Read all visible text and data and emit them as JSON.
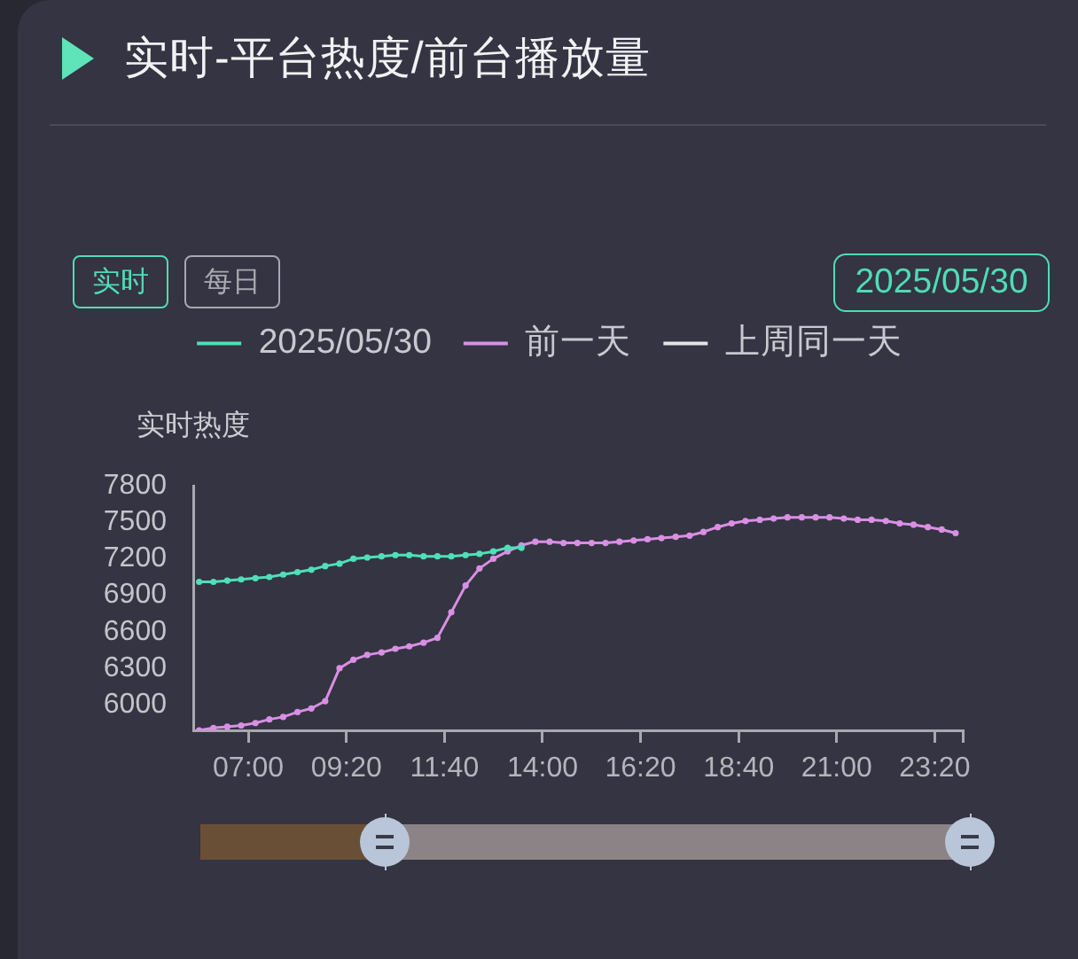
{
  "chart_data": {
    "type": "line",
    "title": "实时-平台热度/前台播放量",
    "ylabel": "实时热度",
    "annotations": [
      "实时",
      "每日",
      "2025/05/30"
    ],
    "xlim": [
      5.69,
      24
    ],
    "xticks": [
      {
        "value": 7,
        "label": "07:00"
      },
      {
        "value": 9.333,
        "label": "09:20"
      },
      {
        "value": 11.667,
        "label": "11:40"
      },
      {
        "value": 14,
        "label": "14:00"
      },
      {
        "value": 16.333,
        "label": "16:20"
      },
      {
        "value": 18.667,
        "label": "18:40"
      },
      {
        "value": 21,
        "label": "21:00"
      },
      {
        "value": 23.333,
        "label": "23:20"
      },
      {
        "value": 24,
        "label": null
      }
    ],
    "ylim": [
      5790,
      7800
    ],
    "yticks": [
      6000,
      6300,
      6600,
      6900,
      7200,
      7500,
      7800
    ],
    "legend": "top",
    "marker": "circle",
    "line_style": "solid",
    "series": [
      {
        "name": "2025/05/30",
        "color": "#4fdfb9",
        "x": [
          5.83,
          6.17,
          6.5,
          6.83,
          7.17,
          7.5,
          7.83,
          8.17,
          8.5,
          8.83,
          9.17,
          9.5,
          9.83,
          10.17,
          10.5,
          10.83,
          11.17,
          11.5,
          11.83,
          12.17,
          12.5,
          12.83,
          13.17,
          13.5
        ],
        "values": [
          7010,
          7010,
          7020,
          7030,
          7040,
          7050,
          7070,
          7090,
          7110,
          7140,
          7160,
          7200,
          7210,
          7220,
          7230,
          7230,
          7220,
          7220,
          7220,
          7230,
          7240,
          7260,
          7290,
          7290
        ]
      },
      {
        "name": "前一天",
        "color": "#d98fe3",
        "x": [
          5.83,
          6.17,
          6.5,
          6.83,
          7.17,
          7.5,
          7.83,
          8.17,
          8.5,
          8.83,
          9.17,
          9.5,
          9.83,
          10.17,
          10.5,
          10.83,
          11.17,
          11.5,
          11.83,
          12.17,
          12.5,
          12.83,
          13.17,
          13.5,
          13.83,
          14.17,
          14.5,
          14.83,
          15.17,
          15.5,
          15.83,
          16.17,
          16.5,
          16.83,
          17.17,
          17.5,
          17.83,
          18.17,
          18.5,
          18.83,
          19.17,
          19.5,
          19.83,
          20.17,
          20.5,
          20.83,
          21.17,
          21.5,
          21.83,
          22.17,
          22.5,
          22.83,
          23.17,
          23.5,
          23.83
        ],
        "values": [
          5790,
          5810,
          5820,
          5830,
          5850,
          5880,
          5900,
          5940,
          5970,
          6030,
          6300,
          6370,
          6410,
          6430,
          6460,
          6480,
          6510,
          6550,
          6760,
          6980,
          7120,
          7200,
          7260,
          7310,
          7340,
          7340,
          7330,
          7330,
          7330,
          7330,
          7340,
          7350,
          7360,
          7370,
          7380,
          7390,
          7420,
          7460,
          7490,
          7510,
          7520,
          7530,
          7540,
          7540,
          7540,
          7540,
          7530,
          7520,
          7520,
          7510,
          7490,
          7480,
          7460,
          7440,
          7410
        ]
      },
      {
        "name": "上周同一天",
        "color": "#e4e4e8"
      }
    ]
  }
}
